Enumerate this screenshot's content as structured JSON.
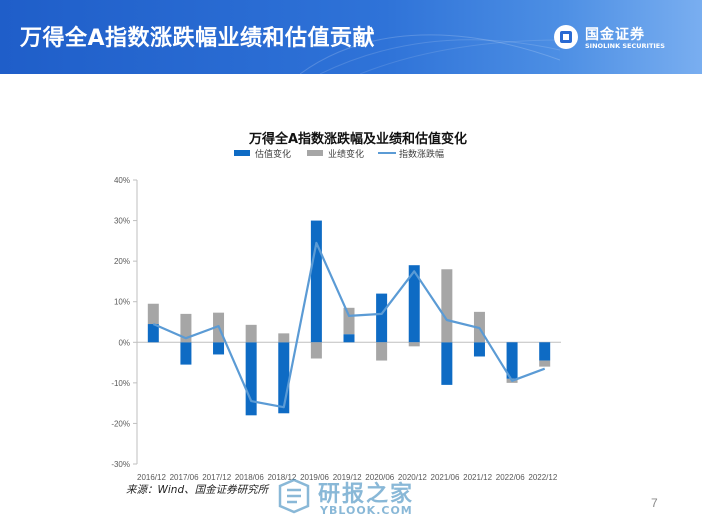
{
  "header": {
    "title": "万得全A指数涨跌幅业绩和估值贡献",
    "brand_cn": "国金证券",
    "brand_en": "SINOLINK SECURITIES"
  },
  "colors": {
    "header": "#2a6ad2",
    "valuation": "#0e6bc4",
    "earnings": "#a6a6a6",
    "index_line": "#5b9bd5"
  },
  "chart_data": {
    "type": "bar",
    "title": "万得全A指数涨跌幅及业绩和估值变化",
    "categories": [
      "2016/12",
      "2017/06",
      "2017/12",
      "2018/06",
      "2018/12",
      "2019/06",
      "2019/12",
      "2020/06",
      "2020/12",
      "2021/06",
      "2021/12",
      "2022/06",
      "2022/12"
    ],
    "series": [
      {
        "name": "估值变化",
        "kind": "bar",
        "color": "#0e6bc4",
        "values": [
          4.5,
          -5.5,
          -3.0,
          -18.0,
          -17.5,
          30.0,
          2.0,
          12.0,
          19.0,
          -10.5,
          -3.5,
          -9.0,
          -4.5
        ]
      },
      {
        "name": "业绩变化",
        "kind": "bar",
        "color": "#a6a6a6",
        "values": [
          5.0,
          7.0,
          7.3,
          4.3,
          2.2,
          -4.0,
          6.5,
          -4.5,
          -1.0,
          18.0,
          7.5,
          -1.0,
          -1.5
        ]
      },
      {
        "name": "指数涨跌幅",
        "kind": "line",
        "color": "#5b9bd5",
        "values": [
          4.5,
          1.0,
          4.0,
          -14.5,
          -16.0,
          24.5,
          6.5,
          7.0,
          17.5,
          5.5,
          3.5,
          -9.5,
          -6.5
        ]
      }
    ],
    "ylim": [
      -30,
      40
    ],
    "yticks": [
      "40%",
      "30%",
      "20%",
      "10%",
      "0%",
      "-10%",
      "-20%",
      "-30%"
    ],
    "legend_position": "top"
  },
  "source": "来源：Wind、国金证券研究所",
  "page_number": "7",
  "watermark": {
    "cn": "研报之家",
    "en": "YBLOOK.COM"
  }
}
